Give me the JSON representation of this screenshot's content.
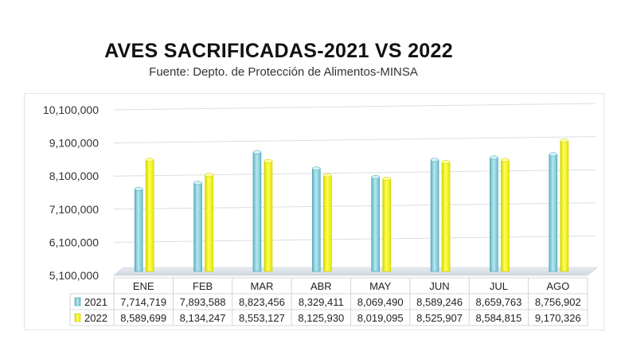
{
  "chart_data": {
    "type": "bar",
    "title": "AVES SACRIFICADAS-2021 VS 2022",
    "subtitle": "Fuente: Depto. de Protección de Alimentos-MINSA",
    "categories": [
      "ENE",
      "FEB",
      "MAR",
      "ABR",
      "MAY",
      "JUN",
      "JUL",
      "AGO"
    ],
    "series": [
      {
        "name": "2021",
        "color": "#8fd3e0",
        "values": [
          7714719,
          7893588,
          8823456,
          8329411,
          8069490,
          8589246,
          8659763,
          8756902
        ],
        "labels": [
          "7,714,719",
          "7,893,588",
          "8,823,456",
          "8,329,411",
          "8,069,490",
          "8,589,246",
          "8,659,763",
          "8,756,902"
        ]
      },
      {
        "name": "2022",
        "color": "#ffff1a",
        "values": [
          8589699,
          8134247,
          8553127,
          8125930,
          8019095,
          8525907,
          8584815,
          9170326
        ],
        "labels": [
          "8,589,699",
          "8,134,247",
          "8,553,127",
          "8,125,930",
          "8,019,095",
          "8,525,907",
          "8,584,815",
          "9,170,326"
        ]
      }
    ],
    "ylim": [
      5100000,
      10100000
    ],
    "yticks": [
      5100000,
      6100000,
      7100000,
      8100000,
      9100000,
      10100000
    ],
    "ytick_labels": [
      "5,100,000",
      "6,100,000",
      "7,100,000",
      "8,100,000",
      "9,100,000",
      "10,100,000"
    ],
    "data_table": true,
    "grid": true
  }
}
